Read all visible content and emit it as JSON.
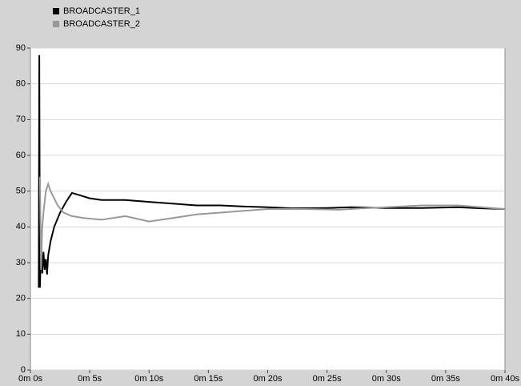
{
  "chart_data": {
    "type": "line",
    "xlim": [
      0,
      40
    ],
    "xticks": [
      {
        "value": 0,
        "label": "0m 0s"
      },
      {
        "value": 5,
        "label": "0m 5s"
      },
      {
        "value": 10,
        "label": "0m 10s"
      },
      {
        "value": 15,
        "label": "0m 15s"
      },
      {
        "value": 20,
        "label": "0m 20s"
      },
      {
        "value": 25,
        "label": "0m 25s"
      },
      {
        "value": 30,
        "label": "0m 30s"
      },
      {
        "value": 35,
        "label": "0m 35s"
      },
      {
        "value": 40,
        "label": "0m 40s"
      }
    ],
    "ylim": [
      0,
      90
    ],
    "yticks": [
      0,
      10,
      20,
      30,
      40,
      50,
      60,
      70,
      80,
      90
    ],
    "grid": true,
    "legend": "top-left",
    "series": [
      {
        "name": "BROADCASTER_1",
        "color": "#000000",
        "x": [
          0.7,
          0.75,
          0.8,
          0.9,
          1.0,
          1.1,
          1.2,
          1.3,
          1.4,
          1.5,
          1.7,
          2.0,
          2.5,
          3.0,
          3.5,
          4.0,
          5.0,
          6.0,
          8.0,
          10.0,
          12.0,
          14.0,
          16.0,
          18.0,
          20.0,
          22.0,
          25.0,
          27.0,
          30.0,
          33.0,
          36.0,
          38.0,
          40.0
        ],
        "values": [
          23,
          88,
          23,
          35,
          27,
          33,
          28,
          31,
          26.7,
          32,
          36,
          40,
          44,
          47,
          49.5,
          49,
          48,
          47.5,
          47.5,
          47,
          46.5,
          46,
          46,
          45.7,
          45.5,
          45.2,
          45.3,
          45.5,
          45.3,
          45.3,
          45.5,
          45.2,
          45
        ]
      },
      {
        "name": "BROADCASTER_2",
        "color": "#999999",
        "x": [
          0.8,
          0.9,
          1.0,
          1.1,
          1.3,
          1.5,
          1.7,
          2.0,
          2.3,
          2.8,
          3.5,
          4.5,
          6.0,
          8.0,
          10.0,
          12.0,
          14.0,
          16.0,
          18.0,
          20.0,
          23.0,
          26.0,
          28.0,
          30.0,
          33.0,
          36.0,
          38.0,
          40.0
        ],
        "values": [
          54,
          28,
          40,
          44,
          50,
          52,
          50,
          48,
          46,
          44,
          43,
          42.5,
          42,
          43,
          41.5,
          42.5,
          43.5,
          44,
          44.5,
          45,
          45,
          44.8,
          45.2,
          45.5,
          46,
          46,
          45.5,
          45
        ]
      }
    ]
  }
}
